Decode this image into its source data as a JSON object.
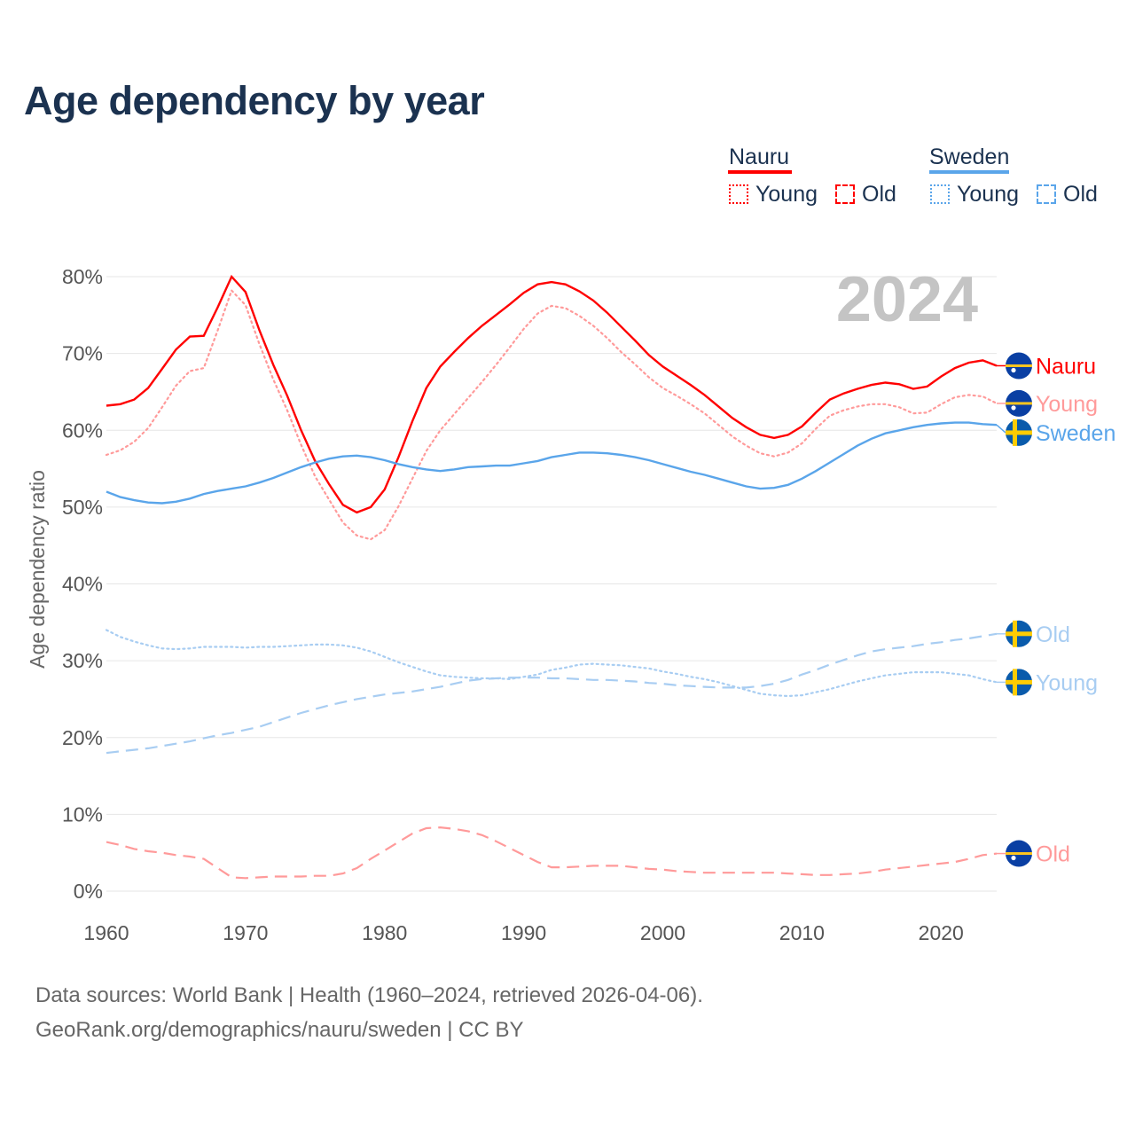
{
  "title": "Age dependency by year",
  "year_badge": "2024",
  "legend": {
    "groups": [
      {
        "name": "Nauru",
        "color": "#ff0000",
        "items": [
          "Young",
          "Old"
        ]
      },
      {
        "name": "Sweden",
        "color": "#5aa5ea",
        "items": [
          "Young",
          "Old"
        ]
      }
    ]
  },
  "footer": {
    "line1": "Data sources: World Bank | Health (1960–2024, retrieved 2026-04-06).",
    "line2": "GeoRank.org/demographics/nauru/sweden | CC BY"
  },
  "chart_data": {
    "type": "line",
    "title": "Age dependency by year",
    "xlabel": "",
    "ylabel": "Age dependency ratio",
    "xlim": [
      1960,
      2024
    ],
    "ylim": [
      0,
      80
    ],
    "xticks": [
      "1960",
      "1970",
      "1980",
      "1990",
      "2000",
      "2010",
      "2020"
    ],
    "yticks": [
      "0%",
      "10%",
      "20%",
      "30%",
      "40%",
      "50%",
      "60%",
      "70%",
      "80%"
    ],
    "grid": true,
    "x_start": 1960,
    "series": [
      {
        "name": "Nauru",
        "end_label": "Nauru",
        "country": "nauru",
        "color": "#ff0000",
        "style": "solid",
        "values": [
          63.2,
          63.4,
          64,
          65.5,
          68,
          70.5,
          72.2,
          72.3,
          76,
          80,
          78,
          73,
          68.5,
          64.5,
          60,
          56,
          53,
          50.3,
          49.3,
          50,
          52.3,
          56.5,
          61.2,
          65.5,
          68.3,
          70.2,
          72,
          73.6,
          75,
          76.4,
          77.9,
          79,
          79.3,
          79,
          78.1,
          76.9,
          75.3,
          73.5,
          71.7,
          69.8,
          68.3,
          67.1,
          65.9,
          64.6,
          63.1,
          61.6,
          60.4,
          59.4,
          59,
          59.4,
          60.5,
          62.3,
          64,
          64.8,
          65.4,
          65.9,
          66.2,
          66,
          65.4,
          65.7,
          67,
          68.1,
          68.8,
          69.1,
          68.4
        ]
      },
      {
        "name": "Nauru Young",
        "end_label": "Young",
        "country": "nauru",
        "color": "#ff9a9a",
        "style": "dotted",
        "values": [
          56.8,
          57.4,
          58.5,
          60.3,
          63,
          65.8,
          67.7,
          68.1,
          73,
          78.2,
          76.3,
          71.2,
          66.6,
          62.6,
          58.1,
          54,
          51,
          48,
          46.3,
          45.8,
          47,
          50.1,
          53.7,
          57.3,
          60,
          62.1,
          64.2,
          66.3,
          68.5,
          70.8,
          73.2,
          75.2,
          76.2,
          75.9,
          74.9,
          73.6,
          72,
          70.2,
          68.6,
          66.9,
          65.5,
          64.5,
          63.4,
          62.2,
          60.7,
          59.2,
          58,
          57,
          56.6,
          57.1,
          58.3,
          60.2,
          61.9,
          62.6,
          63.1,
          63.4,
          63.4,
          63,
          62.2,
          62.3,
          63.4,
          64.3,
          64.6,
          64.4,
          63.5
        ]
      },
      {
        "name": "Nauru Old",
        "end_label": "Old",
        "country": "nauru",
        "color": "#ff9a9a",
        "style": "dashed",
        "values": [
          6.4,
          6,
          5.5,
          5.2,
          5,
          4.7,
          4.5,
          4.2,
          3,
          1.8,
          1.7,
          1.8,
          1.9,
          1.9,
          1.9,
          2,
          2,
          2.3,
          3,
          4.2,
          5.3,
          6.4,
          7.5,
          8.2,
          8.3,
          8.1,
          7.8,
          7.3,
          6.5,
          5.6,
          4.7,
          3.8,
          3.1,
          3.1,
          3.2,
          3.3,
          3.3,
          3.3,
          3.1,
          2.9,
          2.8,
          2.6,
          2.5,
          2.4,
          2.4,
          2.4,
          2.4,
          2.4,
          2.4,
          2.3,
          2.2,
          2.1,
          2.1,
          2.2,
          2.3,
          2.5,
          2.8,
          3,
          3.2,
          3.4,
          3.6,
          3.8,
          4.2,
          4.7,
          4.9
        ]
      },
      {
        "name": "Sweden",
        "end_label": "Sweden",
        "country": "sweden",
        "color": "#5aa5ea",
        "style": "solid",
        "values": [
          52,
          51.3,
          50.9,
          50.6,
          50.5,
          50.7,
          51.1,
          51.7,
          52.1,
          52.4,
          52.7,
          53.2,
          53.8,
          54.5,
          55.2,
          55.8,
          56.3,
          56.6,
          56.7,
          56.5,
          56.1,
          55.6,
          55.2,
          54.9,
          54.7,
          54.9,
          55.2,
          55.3,
          55.4,
          55.4,
          55.7,
          56,
          56.5,
          56.8,
          57.1,
          57.1,
          57,
          56.8,
          56.5,
          56.1,
          55.6,
          55.1,
          54.6,
          54.2,
          53.7,
          53.2,
          52.7,
          52.4,
          52.5,
          52.9,
          53.7,
          54.7,
          55.8,
          56.9,
          58,
          58.9,
          59.6,
          60,
          60.4,
          60.7,
          60.9,
          61,
          61,
          60.8,
          60.7
        ]
      },
      {
        "name": "Sweden Young",
        "end_label": "Young",
        "country": "sweden",
        "color": "#a8cdf2",
        "style": "dotted",
        "values": [
          34,
          33.1,
          32.5,
          32,
          31.6,
          31.5,
          31.6,
          31.8,
          31.8,
          31.8,
          31.7,
          31.8,
          31.8,
          31.9,
          32,
          32.1,
          32.1,
          32,
          31.7,
          31.2,
          30.5,
          29.8,
          29.2,
          28.6,
          28.1,
          27.9,
          27.8,
          27.7,
          27.7,
          27.6,
          27.9,
          28.2,
          28.8,
          29.1,
          29.5,
          29.6,
          29.5,
          29.4,
          29.2,
          29,
          28.6,
          28.3,
          27.9,
          27.6,
          27.2,
          26.7,
          26.2,
          25.7,
          25.5,
          25.4,
          25.5,
          25.9,
          26.3,
          26.8,
          27.3,
          27.7,
          28.1,
          28.3,
          28.5,
          28.5,
          28.5,
          28.3,
          28.1,
          27.6,
          27.2
        ]
      },
      {
        "name": "Sweden Old",
        "end_label": "Old",
        "country": "sweden",
        "color": "#a8cdf2",
        "style": "dashed",
        "values": [
          18,
          18.2,
          18.4,
          18.6,
          18.9,
          19.2,
          19.5,
          19.9,
          20.3,
          20.6,
          21,
          21.4,
          22,
          22.6,
          23.2,
          23.7,
          24.2,
          24.6,
          25,
          25.3,
          25.6,
          25.8,
          26,
          26.3,
          26.6,
          27,
          27.4,
          27.6,
          27.7,
          27.8,
          27.8,
          27.8,
          27.7,
          27.7,
          27.6,
          27.5,
          27.5,
          27.4,
          27.3,
          27.1,
          27,
          26.8,
          26.7,
          26.6,
          26.5,
          26.5,
          26.5,
          26.7,
          27,
          27.5,
          28.2,
          28.8,
          29.5,
          30.1,
          30.7,
          31.2,
          31.5,
          31.7,
          31.9,
          32.2,
          32.4,
          32.7,
          32.9,
          33.2,
          33.5
        ]
      }
    ]
  }
}
